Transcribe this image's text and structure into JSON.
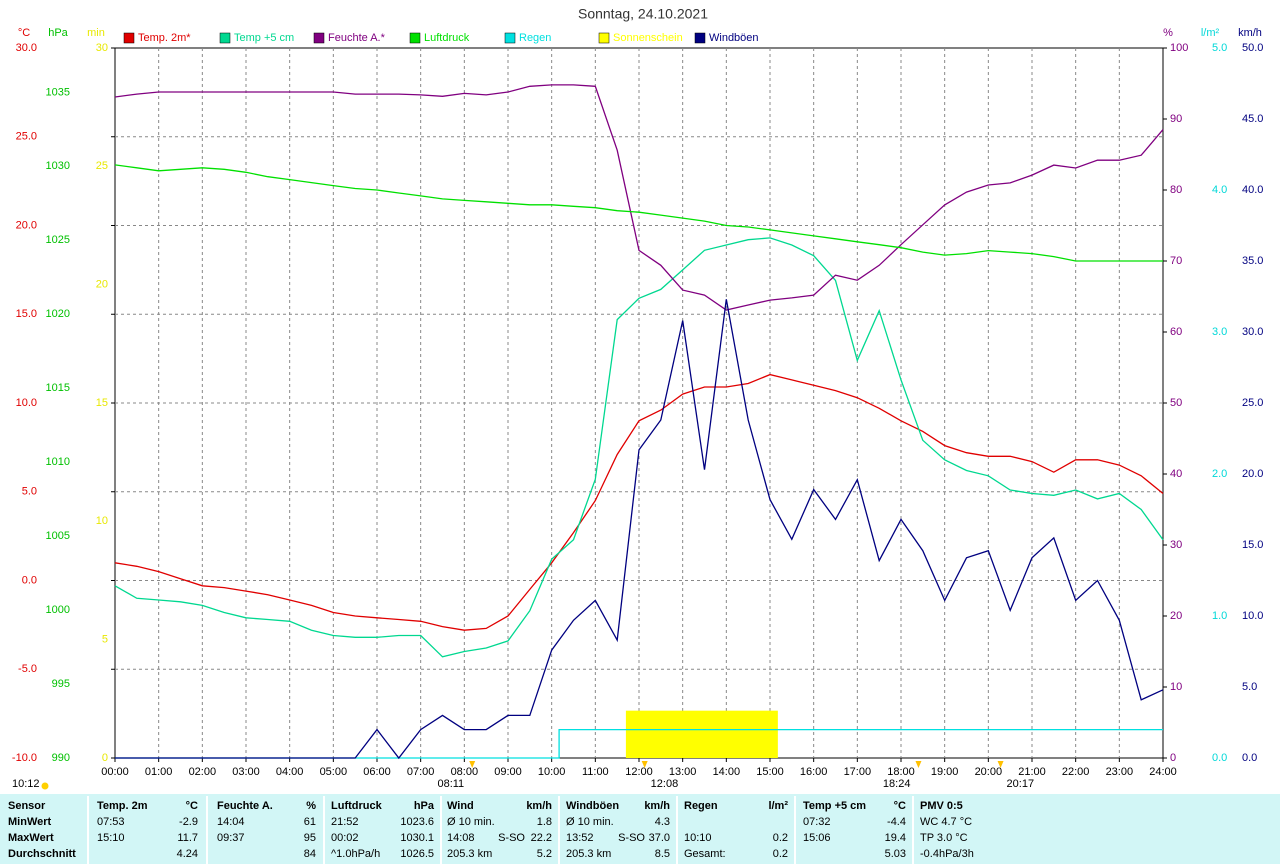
{
  "chart_data": {
    "type": "line",
    "title": "Sonntag, 24.10.2021",
    "xlim": [
      0,
      24
    ],
    "xticks": [
      {
        "value": 0,
        "label": "00:00"
      },
      {
        "value": 1,
        "label": "01:00"
      },
      {
        "value": 2,
        "label": "02:00"
      },
      {
        "value": 3,
        "label": "03:00"
      },
      {
        "value": 4,
        "label": "04:00"
      },
      {
        "value": 5,
        "label": "05:00"
      },
      {
        "value": 6,
        "label": "06:00"
      },
      {
        "value": 7,
        "label": "07:00"
      },
      {
        "value": 8,
        "label": "08:00"
      },
      {
        "value": 9,
        "label": "09:00"
      },
      {
        "value": 10,
        "label": "10:00"
      },
      {
        "value": 11,
        "label": "11:00"
      },
      {
        "value": 12,
        "label": "12:00"
      },
      {
        "value": 13,
        "label": "13:00"
      },
      {
        "value": 14,
        "label": "14:00"
      },
      {
        "value": 15,
        "label": "15:00"
      },
      {
        "value": 16,
        "label": "16:00"
      },
      {
        "value": 17,
        "label": "17:00"
      },
      {
        "value": 18,
        "label": "18:00"
      },
      {
        "value": 19,
        "label": "19:00"
      },
      {
        "value": 20,
        "label": "20:00"
      },
      {
        "value": 21,
        "label": "21:00"
      },
      {
        "value": 22,
        "label": "22:00"
      },
      {
        "value": 23,
        "label": "23:00"
      },
      {
        "value": 24,
        "label": "24:00"
      }
    ],
    "grid": true,
    "axes": [
      {
        "unit": "°C",
        "color": "#e00000",
        "lim": [
          -10,
          30
        ],
        "ticks": [
          {
            "value": -10,
            "label": "-10.0"
          },
          {
            "value": -5,
            "label": "-5.0"
          },
          {
            "value": 0,
            "label": "0.0"
          },
          {
            "value": 5,
            "label": "5.0"
          },
          {
            "value": 10,
            "label": "10.0"
          },
          {
            "value": 15,
            "label": "15.0"
          },
          {
            "value": 20,
            "label": "20.0"
          },
          {
            "value": 25,
            "label": "25.0"
          },
          {
            "value": 30,
            "label": "30.0"
          }
        ]
      },
      {
        "unit": "hPa",
        "color": "#00c000",
        "lim": [
          990,
          1038
        ],
        "ticks": [
          990,
          995,
          1000,
          1005,
          1010,
          1015,
          1020,
          1025,
          1030,
          1035
        ]
      },
      {
        "unit": "min",
        "color": "#e8e800",
        "lim": [
          0,
          30
        ],
        "ticks": [
          0,
          5,
          10,
          15,
          20,
          25,
          30
        ]
      },
      {
        "unit": "%",
        "color": "#800080",
        "lim": [
          0,
          100
        ],
        "ticks": [
          0,
          10,
          20,
          30,
          40,
          50,
          60,
          70,
          80,
          90,
          100
        ]
      },
      {
        "unit": "l/m²",
        "color": "#00d8d8",
        "lim": [
          0,
          5
        ],
        "ticks": [
          {
            "value": 0,
            "label": "0.0"
          },
          {
            "value": 1,
            "label": "1.0"
          },
          {
            "value": 2,
            "label": "2.0"
          },
          {
            "value": 3,
            "label": "3.0"
          },
          {
            "value": 4,
            "label": "4.0"
          },
          {
            "value": 5,
            "label": "5.0"
          }
        ]
      },
      {
        "unit": "km/h",
        "color": "#000080",
        "lim": [
          0,
          50
        ],
        "ticks": [
          {
            "value": 0,
            "label": "0.0"
          },
          {
            "value": 5,
            "label": "5.0"
          },
          {
            "value": 10,
            "label": "10.0"
          },
          {
            "value": 15,
            "label": "15.0"
          },
          {
            "value": 20,
            "label": "20.0"
          },
          {
            "value": 25,
            "label": "25.0"
          },
          {
            "value": 30,
            "label": "30.0"
          },
          {
            "value": 35,
            "label": "35.0"
          },
          {
            "value": 40,
            "label": "40.0"
          },
          {
            "value": 45,
            "label": "45.0"
          },
          {
            "value": 50,
            "label": "50.0"
          }
        ]
      }
    ],
    "x": [
      0,
      0.5,
      1,
      1.5,
      2,
      2.5,
      3,
      3.5,
      4,
      4.5,
      5,
      5.5,
      6,
      6.5,
      7,
      7.5,
      8,
      8.5,
      9,
      9.5,
      10,
      10.5,
      11,
      11.5,
      12,
      12.5,
      13,
      13.5,
      14,
      14.5,
      15,
      15.5,
      16,
      16.5,
      17,
      17.5,
      18,
      18.5,
      19,
      19.5,
      20,
      20.5,
      21,
      21.5,
      22,
      22.5,
      23,
      23.5,
      24
    ],
    "series": [
      {
        "name": "Temp. 2m*",
        "color": "#e00000",
        "axis": 0,
        "values": [
          1.0,
          0.8,
          0.5,
          0.1,
          -0.3,
          -0.4,
          -0.6,
          -0.8,
          -1.1,
          -1.4,
          -1.8,
          -2.0,
          -2.1,
          -2.2,
          -2.3,
          -2.6,
          -2.8,
          -2.7,
          -2.0,
          -0.5,
          1.0,
          2.7,
          4.5,
          7.1,
          9.0,
          9.6,
          10.5,
          10.9,
          10.9,
          11.1,
          11.6,
          11.3,
          11.0,
          10.7,
          10.3,
          9.7,
          9.0,
          8.4,
          7.6,
          7.2,
          7.0,
          7.0,
          6.7,
          6.1,
          6.8,
          6.8,
          6.5,
          5.9,
          4.9
        ]
      },
      {
        "name": "Temp +5 cm",
        "color": "#00d890",
        "axis": 0,
        "values": [
          -0.3,
          -1.0,
          -1.1,
          -1.2,
          -1.4,
          -1.8,
          -2.1,
          -2.2,
          -2.3,
          -2.8,
          -3.1,
          -3.2,
          -3.2,
          -3.1,
          -3.1,
          -4.3,
          -4.0,
          -3.8,
          -3.4,
          -1.7,
          1.2,
          2.3,
          5.7,
          14.7,
          15.9,
          16.4,
          17.5,
          18.6,
          18.9,
          19.2,
          19.3,
          18.9,
          18.3,
          16.9,
          12.4,
          15.2,
          11.3,
          7.9,
          6.8,
          6.2,
          5.9,
          5.1,
          4.9,
          4.8,
          5.1,
          4.6,
          4.9,
          4.0,
          2.3
        ]
      },
      {
        "name": "Feuchte A.*",
        "color": "#800080",
        "axis": 3,
        "values": [
          93.1,
          93.5,
          93.8,
          93.8,
          93.8,
          93.8,
          93.8,
          93.8,
          93.8,
          93.8,
          93.8,
          93.5,
          93.5,
          93.5,
          93.4,
          93.2,
          93.6,
          93.4,
          93.8,
          94.6,
          94.8,
          94.8,
          94.6,
          85.6,
          71.5,
          69.4,
          65.9,
          65.2,
          63.1,
          63.8,
          64.5,
          64.8,
          65.2,
          68.0,
          67.3,
          69.4,
          72.3,
          75.1,
          77.9,
          79.7,
          80.7,
          81.0,
          82.1,
          83.5,
          83.1,
          84.2,
          84.2,
          84.9,
          88.5
        ]
      },
      {
        "name": "Luftdruck",
        "color": "#00e000",
        "axis": 1,
        "values": [
          1030.1,
          1029.9,
          1029.7,
          1029.8,
          1029.9,
          1029.8,
          1029.6,
          1029.3,
          1029.1,
          1028.9,
          1028.7,
          1028.5,
          1028.4,
          1028.2,
          1028.0,
          1027.8,
          1027.7,
          1027.6,
          1027.5,
          1027.4,
          1027.4,
          1027.3,
          1027.2,
          1027.0,
          1026.9,
          1026.7,
          1026.5,
          1026.3,
          1026.0,
          1025.9,
          1025.7,
          1025.5,
          1025.3,
          1025.1,
          1024.9,
          1024.7,
          1024.5,
          1024.2,
          1024.0,
          1024.1,
          1024.3,
          1024.2,
          1024.1,
          1023.9,
          1023.6,
          1023.6,
          1023.6,
          1023.6,
          1023.6
        ]
      },
      {
        "name": "Regen",
        "color": "#00e0e0",
        "axis": 4,
        "x": [
          0,
          10.17,
          10.17,
          24
        ],
        "values": [
          0,
          0,
          0.2,
          0.2
        ]
      },
      {
        "name": "Sonnenschein",
        "color": "#ffff00",
        "axis": 2,
        "style": "block",
        "x": [
          11.7,
          15.18
        ],
        "values": [
          2,
          2
        ]
      },
      {
        "name": "Windböen",
        "color": "#000080",
        "axis": 5,
        "values": [
          0,
          0,
          0,
          0,
          0,
          0,
          0,
          0,
          0,
          0,
          0,
          0,
          2,
          0,
          2,
          3,
          2,
          2,
          3,
          3,
          7.6,
          9.7,
          11.1,
          8.3,
          21.7,
          23.8,
          30.8,
          20.3,
          32.3,
          23.8,
          18.2,
          15.4,
          18.9,
          16.8,
          19.6,
          13.9,
          16.8,
          14.6,
          11.1,
          14.1,
          14.6,
          10.4,
          14.1,
          15.5,
          11.1,
          12.5,
          9.7,
          4.1,
          4.8
        ]
      }
    ],
    "annotations": [
      {
        "x": 8.18,
        "text": "08:11"
      },
      {
        "x": 12.13,
        "text": "12:08"
      },
      {
        "x": 18.4,
        "text": "18:24"
      },
      {
        "x": 20.28,
        "text": "20:17"
      }
    ],
    "day_length": "10:12"
  },
  "table": {
    "header": {
      "label": "Sensor",
      "temp2m": [
        "Temp. 2m",
        "°C"
      ],
      "feuchte": [
        "Feuchte A.",
        "%"
      ],
      "druck": [
        "Luftdruck",
        "hPa"
      ],
      "wind": [
        "Wind",
        "km/h"
      ],
      "boeen": [
        "Windböen",
        "km/h"
      ],
      "regen": [
        "Regen",
        "l/m²"
      ],
      "temp5": [
        "Temp +5 cm",
        "°C"
      ],
      "pmv": "PMV 0:5"
    },
    "rows": [
      {
        "label": "MinWert",
        "temp2m": [
          "07:53",
          "-2.9"
        ],
        "feuchte": [
          "14:04",
          "61"
        ],
        "druck": [
          "21:52",
          "1023.6"
        ],
        "wind": [
          "Ø 10 min.",
          "1.8"
        ],
        "boeen": [
          "Ø 10 min.",
          "4.3"
        ],
        "temp5": [
          "07:32",
          "-4.4"
        ],
        "pmv": "WC 4.7 °C"
      },
      {
        "label": "MaxWert",
        "temp2m": [
          "15:10",
          "11.7"
        ],
        "feuchte": [
          "09:37",
          "95"
        ],
        "druck": [
          "00:02",
          "1030.1"
        ],
        "wind": [
          "14:08",
          "S-SO",
          "22.2"
        ],
        "boeen": [
          "13:52",
          "S-SO",
          "37.0"
        ],
        "regen": [
          "10:10",
          "0.2"
        ],
        "temp5": [
          "15:06",
          "19.4"
        ],
        "pmv": "TP 3.0 °C"
      },
      {
        "label": "Durchschnitt",
        "temp2m": [
          "4.24"
        ],
        "feuchte": [
          "84"
        ],
        "druck": [
          "^1.0hPa/h",
          "1026.5"
        ],
        "wind": [
          "205.3 km",
          "5.2"
        ],
        "boeen": [
          "205.3 km",
          "8.5"
        ],
        "regen": [
          "Gesamt:",
          "0.2"
        ],
        "temp5": [
          "5.03"
        ],
        "pmv": "-0.4hPa/3h"
      }
    ]
  }
}
